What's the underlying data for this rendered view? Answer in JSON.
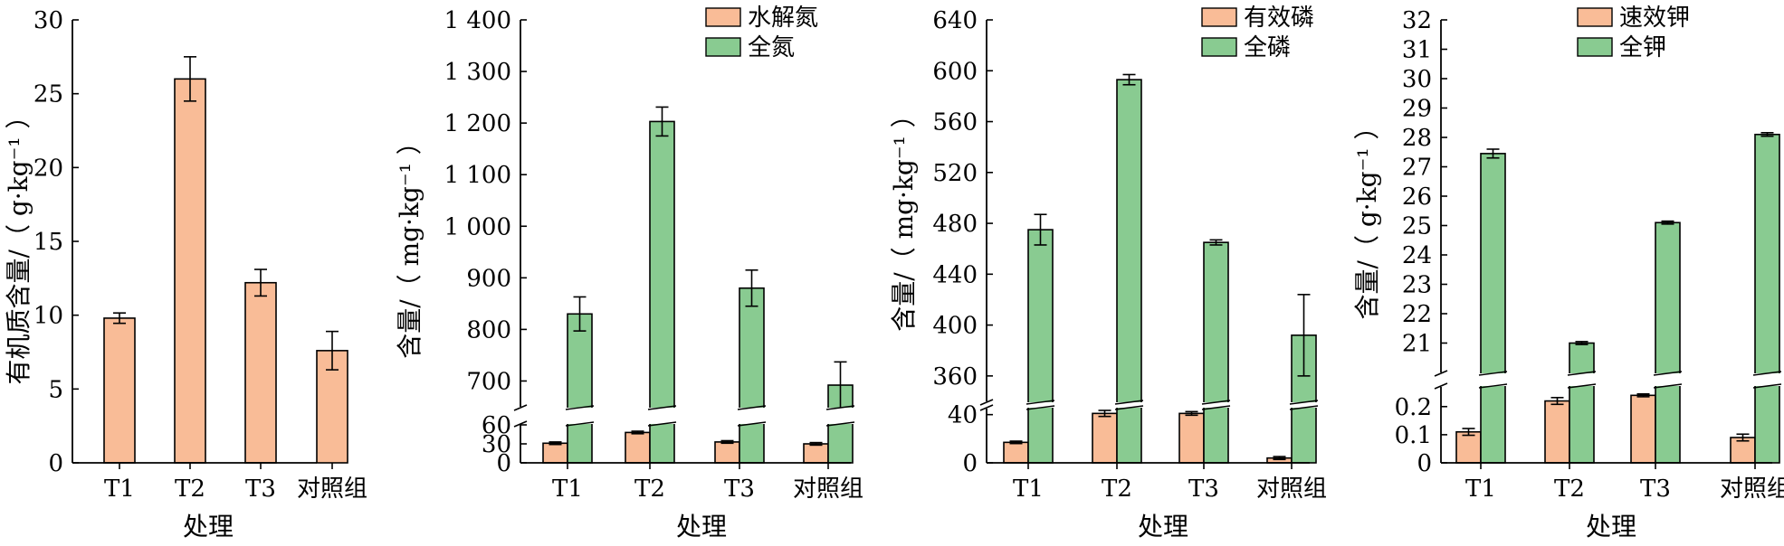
{
  "colors": {
    "orange": "#F9BC97",
    "green": "#89CB91",
    "stroke": "#000000"
  },
  "chart_data": [
    {
      "type": "bar",
      "categories": [
        "T1",
        "T2",
        "T3",
        "对照组"
      ],
      "xlabel": "处理",
      "ylabel": "有机质含量/（ g·kg⁻¹ ）",
      "ylim": [
        0,
        30
      ],
      "yticks": [
        0,
        5,
        10,
        15,
        20,
        25,
        30
      ],
      "ytick_labels": [
        "0",
        "5",
        "10",
        "15",
        "20",
        "25",
        "30"
      ],
      "series": [
        {
          "values": [
            9.8,
            26.0,
            12.2,
            7.6
          ],
          "errors": [
            0.35,
            1.5,
            0.9,
            1.3
          ]
        }
      ]
    },
    {
      "type": "bar",
      "categories": [
        "T1",
        "T2",
        "T3",
        "对照组"
      ],
      "xlabel": "处理",
      "ylabel": "含量/（ mg·kg⁻¹ ）",
      "axis_break": {
        "lower": [
          0,
          60
        ],
        "upper": [
          650,
          1400
        ]
      },
      "yticks": [
        0,
        30,
        60,
        700,
        800,
        900,
        1000,
        1100,
        1200,
        1300,
        1400
      ],
      "ytick_labels": [
        "0",
        "30",
        "60",
        "700",
        "800",
        "900",
        "1 000",
        "1 100",
        "1 200",
        "1 300",
        "1 400"
      ],
      "legend": "top-right",
      "series": [
        {
          "name": "水解氮",
          "values": [
            31,
            48,
            33,
            30
          ],
          "errors": [
            2,
            2,
            2,
            2
          ]
        },
        {
          "name": "全氮",
          "values": [
            830,
            1203,
            880,
            692
          ],
          "errors": [
            33,
            28,
            35,
            45
          ]
        }
      ]
    },
    {
      "type": "bar",
      "categories": [
        "T1",
        "T2",
        "T3",
        "对照组"
      ],
      "xlabel": "处理",
      "ylabel": "含量/（ mg·kg⁻¹ ）",
      "axis_break": {
        "lower": [
          0,
          45
        ],
        "upper": [
          340,
          640
        ]
      },
      "yticks": [
        0,
        40,
        360,
        400,
        440,
        480,
        520,
        560,
        600,
        640
      ],
      "ytick_labels": [
        "0",
        "40",
        "360",
        "400",
        "440",
        "480",
        "520",
        "560",
        "600",
        "640"
      ],
      "legend": "top-right",
      "series": [
        {
          "name": "有效磷",
          "values": [
            17,
            41,
            41,
            4
          ],
          "errors": [
            1,
            2.5,
            1.5,
            1.2
          ]
        },
        {
          "name": "全磷",
          "values": [
            475,
            593,
            465,
            392
          ],
          "errors": [
            12,
            4,
            2,
            32
          ]
        }
      ]
    },
    {
      "type": "bar",
      "categories": [
        "T1",
        "T2",
        "T3",
        "对照组"
      ],
      "xlabel": "处理",
      "ylabel": "含量/（ g·kg⁻¹ ）",
      "axis_break": {
        "lower": [
          0,
          0.27
        ],
        "upper": [
          20.0,
          32.0
        ]
      },
      "yticks": [
        0,
        0.1,
        0.2,
        21,
        22,
        23,
        24,
        25,
        26,
        27,
        28,
        29,
        30,
        31,
        32
      ],
      "ytick_labels": [
        "0",
        "0.1",
        "0.2",
        "21",
        "22",
        "23",
        "24",
        "25",
        "26",
        "27",
        "28",
        "29",
        "30",
        "31",
        "32"
      ],
      "legend": "top-right",
      "series": [
        {
          "name": "速效钾",
          "values": [
            0.11,
            0.22,
            0.24,
            0.09
          ],
          "errors": [
            0.012,
            0.012,
            0.005,
            0.012
          ]
        },
        {
          "name": "全钾",
          "values": [
            27.45,
            21.0,
            25.1,
            28.1
          ],
          "errors": [
            0.15,
            0.05,
            0.05,
            0.06
          ]
        }
      ]
    }
  ]
}
